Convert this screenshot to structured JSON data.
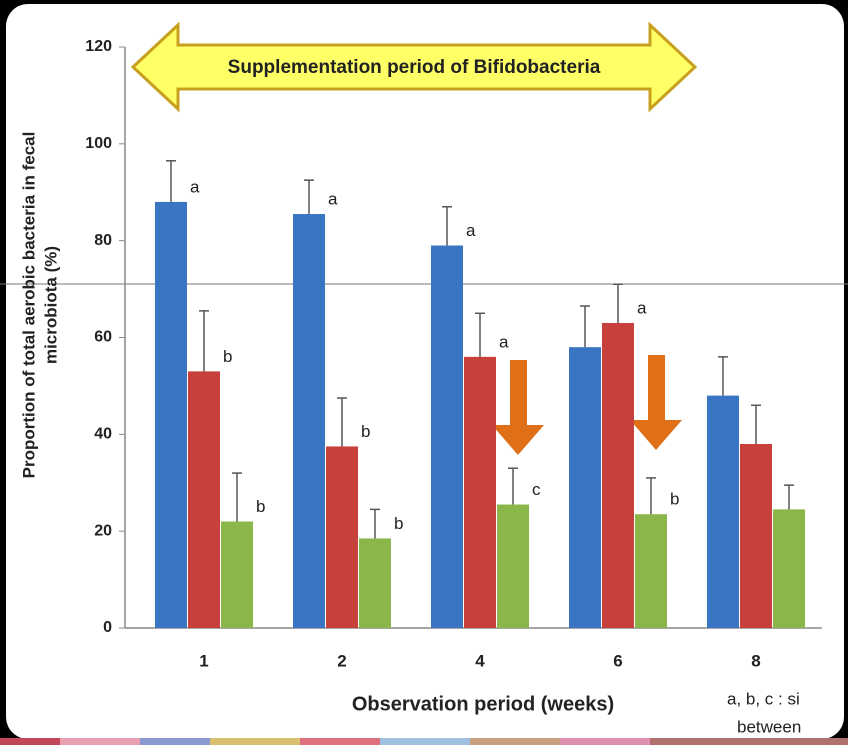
{
  "chart_data": {
    "type": "bar",
    "banner": "Supplementation period of Bifidobacteria",
    "ylabel": [
      "Proportion of total aerobic bacteria in fecal",
      "microbiota (%)"
    ],
    "xlabel": "Observation period (weeks)",
    "footnote": [
      "a, b, c : si",
      "between"
    ],
    "categories": [
      "1",
      "2",
      "4",
      "6",
      "8"
    ],
    "series": [
      {
        "color": "#3a75c4",
        "values": [
          88,
          85.5,
          79,
          58,
          48
        ],
        "errors": [
          8.5,
          7,
          8,
          8.5,
          8
        ],
        "letters": [
          "a",
          "a",
          "a",
          "a",
          null
        ]
      },
      {
        "color": "#c8403c",
        "values": [
          53,
          37.5,
          56,
          63,
          38
        ],
        "errors": [
          12.5,
          10,
          9,
          8,
          8
        ],
        "letters": [
          "b",
          "b",
          "a",
          "a",
          null
        ]
      },
      {
        "color": "#8ab64a",
        "values": [
          22,
          18.5,
          25.5,
          23.5,
          24.5
        ],
        "errors": [
          10,
          6,
          7.5,
          7.5,
          5
        ],
        "letters": [
          "b",
          "b",
          "c",
          "b",
          null
        ]
      }
    ],
    "ylim": [
      0,
      120
    ],
    "yticks": [
      0,
      20,
      40,
      60,
      80,
      100,
      120
    ]
  }
}
